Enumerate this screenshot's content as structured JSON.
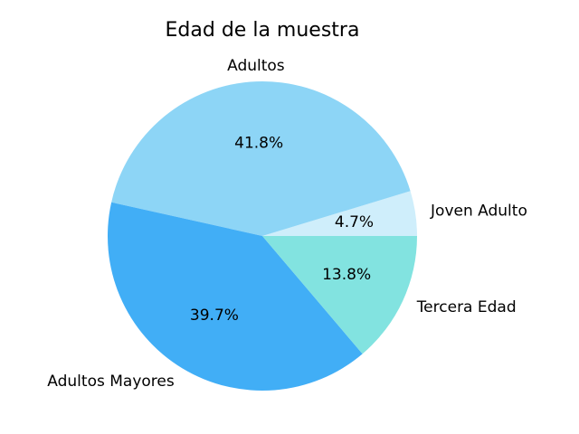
{
  "chart_data": {
    "type": "pie",
    "title": "Edad de la muestra",
    "slices": [
      {
        "label": "Joven Adulto",
        "value": 4.7,
        "pct_label": "4.7%",
        "color": "#cfeefb"
      },
      {
        "label": "Adultos",
        "value": 41.8,
        "pct_label": "41.8%",
        "color": "#8dd5f6"
      },
      {
        "label": "Adultos Mayores",
        "value": 39.7,
        "pct_label": "39.7%",
        "color": "#41aef6"
      },
      {
        "label": "Tercera Edad",
        "value": 13.8,
        "pct_label": "13.8%",
        "color": "#82e3e0"
      }
    ],
    "start_angle_deg": 0,
    "direction": "counterclockwise",
    "legend": "none"
  }
}
